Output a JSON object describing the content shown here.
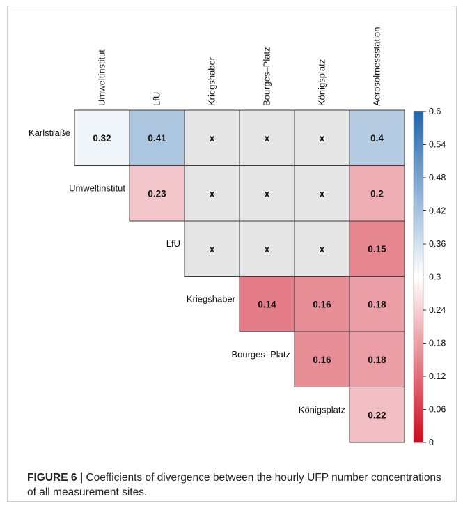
{
  "chart_data": {
    "type": "heatmap",
    "columns": [
      "Umweltinstitut",
      "LfU",
      "Kriegshaber",
      "Bourges–Platz",
      "Königsplatz",
      "Aerosolmessstation"
    ],
    "rows": [
      "Karlstraße",
      "Umweltinstitut",
      "LfU",
      "Kriegshaber",
      "Bourges–Platz",
      "Königsplatz"
    ],
    "cells": [
      [
        0.32,
        0.41,
        "x",
        "x",
        "x",
        0.4
      ],
      [
        null,
        0.23,
        "x",
        "x",
        "x",
        0.2
      ],
      [
        null,
        null,
        "x",
        "x",
        "x",
        0.15
      ],
      [
        null,
        null,
        null,
        0.14,
        0.16,
        0.18
      ],
      [
        null,
        null,
        null,
        null,
        0.16,
        0.18
      ],
      [
        null,
        null,
        null,
        null,
        null,
        0.22
      ]
    ],
    "cell_labels": [
      [
        "0.32",
        "0.41",
        "x",
        "x",
        "x",
        "0.4"
      ],
      [
        null,
        "0.23",
        "x",
        "x",
        "x",
        "0.2"
      ],
      [
        null,
        null,
        "x",
        "x",
        "x",
        "0.15"
      ],
      [
        null,
        null,
        null,
        "0.14",
        "0.16",
        "0.18"
      ],
      [
        null,
        null,
        null,
        null,
        "0.16",
        "0.18"
      ],
      [
        null,
        null,
        null,
        null,
        null,
        "0.22"
      ]
    ],
    "colorbar": {
      "min": 0,
      "max": 0.6,
      "ticks": [
        0,
        0.06,
        0.12,
        0.18,
        0.24,
        0.3,
        0.36,
        0.42,
        0.48,
        0.54,
        0.6
      ],
      "tick_labels": [
        "0",
        "0.06",
        "0.12",
        "0.18",
        "0.24",
        "0.3",
        "0.36",
        "0.42",
        "0.48",
        "0.54",
        "0.6"
      ],
      "colors": {
        "low": "#cc0c1f",
        "mid": "#ffffff",
        "high": "#2166ac"
      }
    },
    "na_color": "#e6e6e6"
  },
  "caption": {
    "label": "FIGURE 6 |",
    "text": " Coefficients of divergence between the hourly UFP number concentrations of all measurement sites."
  }
}
